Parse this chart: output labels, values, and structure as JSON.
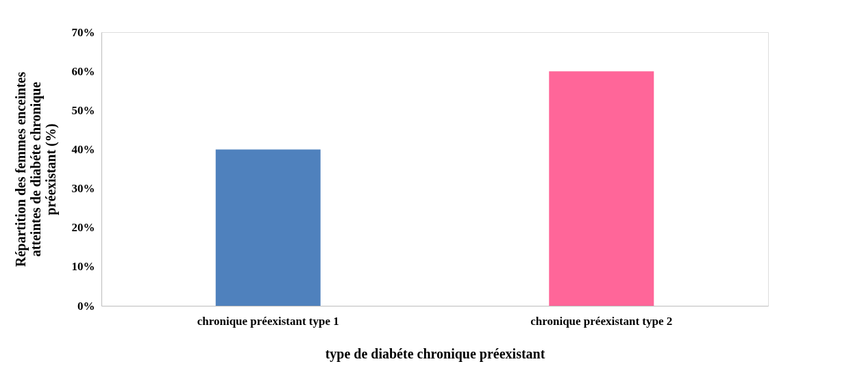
{
  "chart_data": {
    "type": "bar",
    "categories": [
      "chronique préexistant type 1",
      "chronique préexistant type 2"
    ],
    "values": [
      40,
      60
    ],
    "colors": [
      "#4f81bd",
      "#ff6699"
    ],
    "xlabel": "type de diabéte chronique préexistant",
    "ylabel": "Répartition des femmes enceintes\natteintes de diabéte chronique\npréexistant (%)",
    "ylim": [
      0,
      70
    ],
    "yticks": [
      {
        "value": 0,
        "label": "0%"
      },
      {
        "value": 10,
        "label": "10%"
      },
      {
        "value": 20,
        "label": "20%"
      },
      {
        "value": 30,
        "label": "30%"
      },
      {
        "value": 40,
        "label": "40%"
      },
      {
        "value": 50,
        "label": "50%"
      },
      {
        "value": 60,
        "label": "60%"
      },
      {
        "value": 70,
        "label": "70%"
      }
    ],
    "grid": false,
    "legend": false
  }
}
